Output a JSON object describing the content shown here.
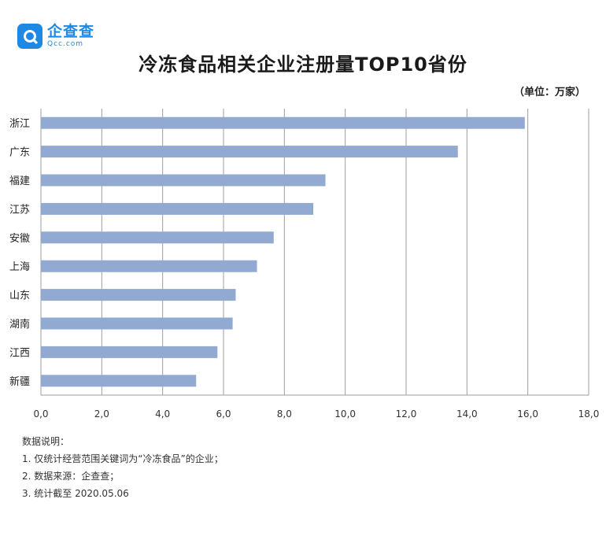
{
  "brand": {
    "name": "企查查",
    "sub": "Qcc.com",
    "color": "#1e88e5"
  },
  "title": "冷冻食品相关企业注册量TOP10省份",
  "unit": "（单位：万家）",
  "chart_data": {
    "type": "bar",
    "orientation": "horizontal",
    "categories": [
      "浙江",
      "广东",
      "福建",
      "江苏",
      "安徽",
      "上海",
      "山东",
      "湖南",
      "江西",
      "新疆"
    ],
    "values": [
      15.9,
      13.7,
      9.35,
      8.95,
      7.65,
      7.1,
      6.4,
      6.3,
      5.8,
      5.1
    ],
    "xlim": [
      0,
      18
    ],
    "xticks": [
      "0,0",
      "2,0",
      "4,0",
      "6,0",
      "8,0",
      "10,0",
      "12,0",
      "14,0",
      "16,0",
      "18,0"
    ],
    "bar_color": "#92a9d1",
    "grid": "vertical"
  },
  "notes": {
    "heading": "数据说明：",
    "items": [
      "1. 仅统计经营范围关键词为“冷冻食品”的企业；",
      "2. 数据来源：企查查；",
      "3. 统计截至 2020.05.06"
    ]
  }
}
